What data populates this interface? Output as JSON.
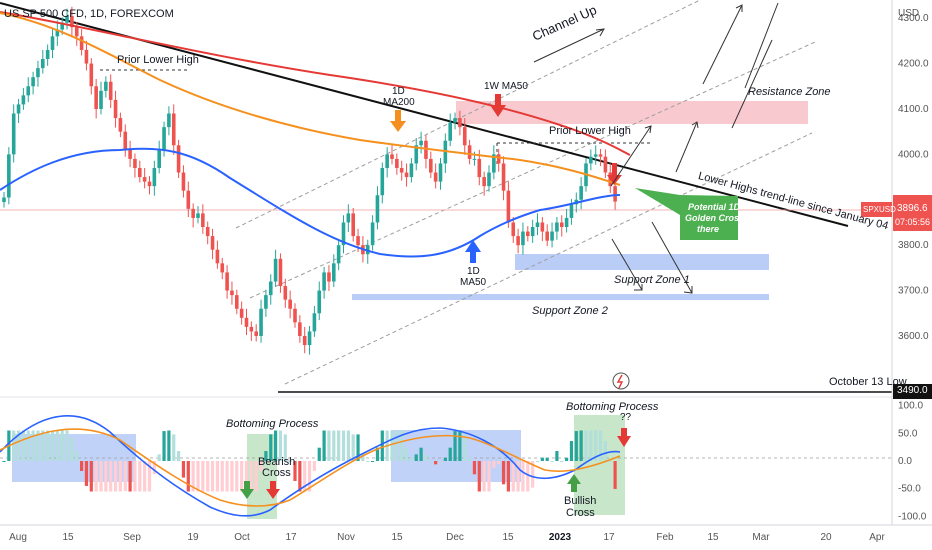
{
  "header": {
    "symbol_line": "US SP 500 CFD, 1D, FOREXCOM"
  },
  "price_axis": {
    "unit": "USD",
    "ticks": [
      "4300.0",
      "4200.0",
      "4100.0",
      "4000.0",
      "3900.0",
      "3800.0",
      "3700.0",
      "3600.0"
    ],
    "ticks_values": [
      4300,
      4200,
      4100,
      4000,
      3900,
      3800,
      3700,
      3600
    ],
    "last_price_label": "SPXUSD",
    "last_price": "3896.6",
    "countdown": "07:05:56",
    "level_label": "3490.0"
  },
  "osc_axis": {
    "ticks": [
      "100.0",
      "50.0",
      "0.0",
      "-50.0",
      "-100.0"
    ],
    "ticks_values": [
      100,
      50,
      0,
      -50,
      -100
    ]
  },
  "time_axis": {
    "ticks": [
      "Aug",
      "15",
      "Sep",
      "19",
      "Oct",
      "17",
      "Nov",
      "15",
      "Dec",
      "15",
      "2023",
      "17",
      "Feb",
      "15",
      "Mar",
      "20",
      "Apr"
    ]
  },
  "annotations": {
    "prior_lower_high_left": "Prior Lower High",
    "ma200_1d_line1": "1D",
    "ma200_1d_line2": "MA200",
    "ma50_1w": "1W MA50",
    "channel_up": "Channel Up",
    "resistance_zone": "Resistance Zone",
    "prior_lower_high_right": "Prior Lower High",
    "lower_highs": "Lower Highs trend-line since January 04",
    "ma50_1d_line1": "1D",
    "ma50_1d_line2": "MA50",
    "golden_cross_1": "Potential 1D",
    "golden_cross_2": "Golden Cross",
    "golden_cross_3": "there",
    "support_zone_1": "Support Zone 1",
    "support_zone_2": "Support Zone 2",
    "october_low": "October 13 Low",
    "bottoming_left": "Bottoming Process",
    "bearish_1": "Bearish",
    "bearish_2": "Cross",
    "bottoming_right": "Bottoming Process",
    "bottoming_right_q": "??",
    "bullish_1": "Bullish",
    "bullish_2": "Cross"
  },
  "colors": {
    "bull": "#26a69a",
    "bear": "#ef5350",
    "ma200": "#e53935",
    "orange": "#f5901e",
    "blue": "#2962ff",
    "trend": "#111111",
    "resistance_fill": "#f8c9cf",
    "support_fill": "#b9cdf7",
    "green_zone": "#c8e6c9"
  },
  "chart_data": {
    "type": "candlestick",
    "price_range": [
      3470,
      4340
    ],
    "osc_range": [
      -110,
      110
    ],
    "candle_closes": [
      3905,
      4000,
      4090,
      4110,
      4130,
      4150,
      4170,
      4190,
      4210,
      4230,
      4260,
      4275,
      4290,
      4305,
      4280,
      4260,
      4230,
      4200,
      4150,
      4100,
      4140,
      4160,
      4120,
      4080,
      4050,
      4010,
      3990,
      3970,
      3950,
      3940,
      3930,
      3970,
      4010,
      4060,
      4090,
      4020,
      3960,
      3920,
      3880,
      3860,
      3870,
      3840,
      3820,
      3790,
      3760,
      3740,
      3700,
      3690,
      3660,
      3640,
      3620,
      3610,
      3600,
      3660,
      3690,
      3720,
      3770,
      3710,
      3680,
      3660,
      3630,
      3600,
      3580,
      3610,
      3650,
      3700,
      3740,
      3720,
      3760,
      3800,
      3850,
      3870,
      3820,
      3800,
      3780,
      3800,
      3850,
      3910,
      3970,
      4000,
      3990,
      3970,
      3960,
      3950,
      3980,
      4020,
      4030,
      3990,
      3960,
      3940,
      3980,
      4030,
      4070,
      4080,
      4060,
      4020,
      3990,
      3990,
      3950,
      3930,
      3960,
      4000,
      3980,
      3920,
      3850,
      3820,
      3800,
      3830,
      3820,
      3840,
      3850,
      3830,
      3810,
      3830,
      3850,
      3840,
      3860,
      3890,
      3900,
      3930,
      3980,
      3995,
      4000,
      3995,
      3960,
      3930,
      3896
    ]
  }
}
